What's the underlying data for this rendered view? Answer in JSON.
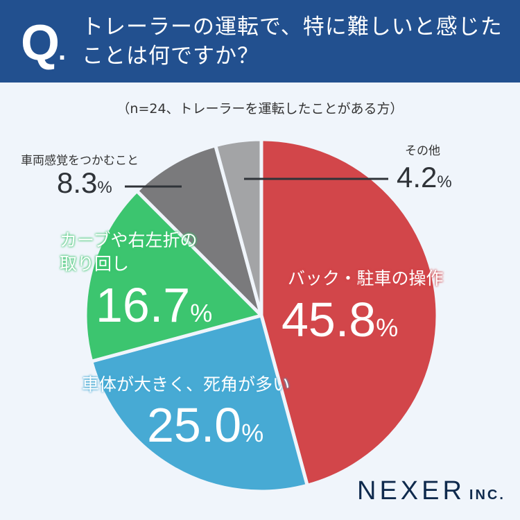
{
  "header": {
    "q_mark": "Q",
    "q_dot": ".",
    "title_line1": "トレーラーの運転で、特に難しいと感じた",
    "title_line2": "ことは何ですか？",
    "bg_color": "#22508f"
  },
  "subtitle": "（n=24、トレーラーを運転したことがある方）",
  "labels": {
    "back": {
      "name": "バック・駐車の操作",
      "value": "45.8",
      "unit": "%"
    },
    "size": {
      "name": "車体が大きく、死角が多い",
      "value": "25.0",
      "unit": "%"
    },
    "curve": {
      "name1": "カーブや右左折の",
      "name2": "取り回し",
      "value": "16.7",
      "unit": "%"
    },
    "sense": {
      "name": "車両感覚をつかむこと",
      "value": "8.3",
      "unit": "%"
    },
    "other": {
      "name": "その他",
      "value": "4.2",
      "unit": "%"
    }
  },
  "logo": {
    "main": "NEXER",
    "suffix": "INC."
  },
  "chart_data": {
    "type": "pie",
    "title": "トレーラーの運転で、特に難しいと感じたことは何ですか？",
    "subtitle": "（n=24、トレーラーを運転したことがある方）",
    "categories": [
      "バック・駐車の操作",
      "車体が大きく、死角が多い",
      "カーブや右左折の取り回し",
      "車両感覚をつかむこと",
      "その他"
    ],
    "values": [
      45.8,
      25.0,
      16.7,
      8.3,
      4.2
    ],
    "colors": [
      "#d2464a",
      "#47aad4",
      "#3cc56f",
      "#7a7a7c",
      "#a3a4a6"
    ],
    "start_angle_deg": 0,
    "direction": "clockwise",
    "center": [
      377,
      455
    ],
    "radius": 254,
    "legend": "none (direct labels)"
  }
}
